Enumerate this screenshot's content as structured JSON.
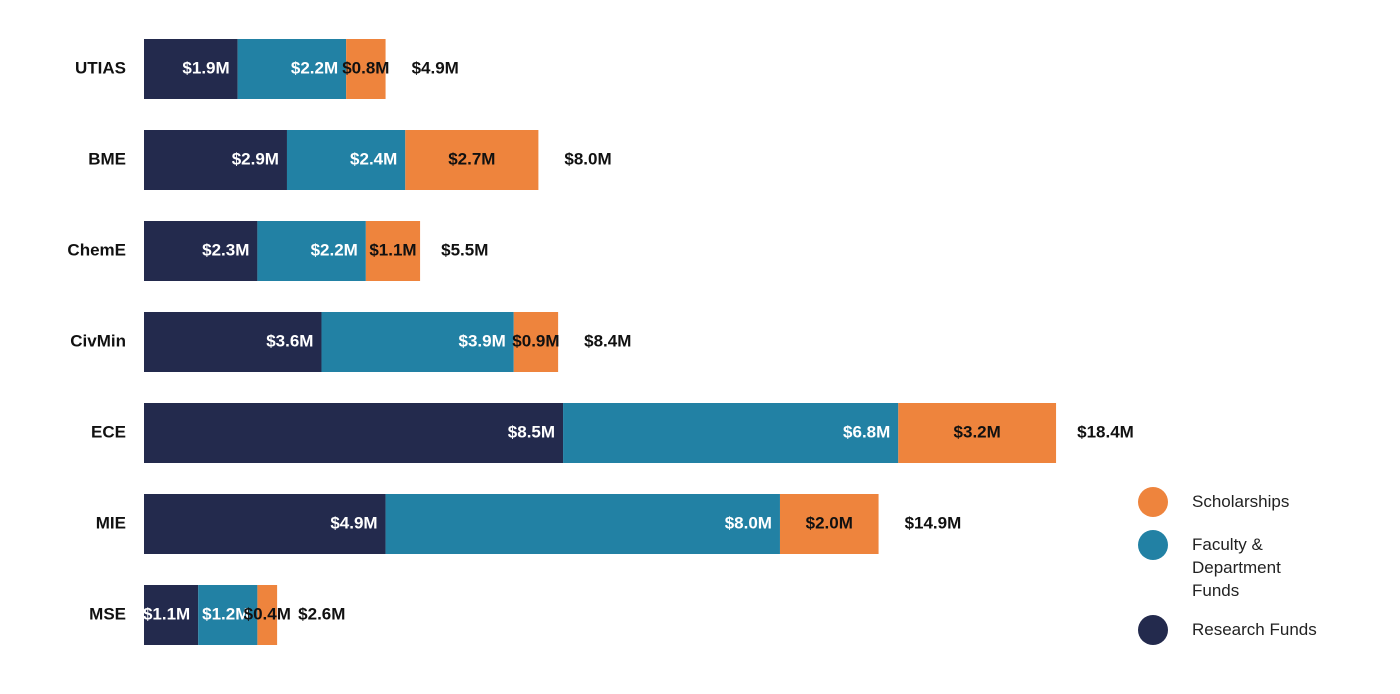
{
  "chart_data": {
    "type": "stacked_bar_horizontal",
    "categories": [
      "UTIAS",
      "BME",
      "ChemE",
      "CivMin",
      "ECE",
      "MIE",
      "MSE"
    ],
    "series": [
      {
        "name": "Research Funds",
        "color": "#232a4d",
        "label_color": "#ffffff",
        "values": [
          1.9,
          2.9,
          2.3,
          3.6,
          8.5,
          4.9,
          1.1
        ],
        "value_labels": [
          "$1.9M",
          "$2.9M",
          "$2.3M",
          "$3.6M",
          "$8.5M",
          "$4.9M",
          "$1.1M"
        ]
      },
      {
        "name": "Faculty & Department Funds",
        "color": "#2281a4",
        "label_color": "#ffffff",
        "values": [
          2.2,
          2.4,
          2.2,
          3.9,
          6.8,
          8.0,
          1.2
        ],
        "value_labels": [
          "$2.2M",
          "$2.4M",
          "$2.2M",
          "$3.9M",
          "$6.8M",
          "$8.0M",
          "$1.2M"
        ]
      },
      {
        "name": "Scholarships",
        "color": "#ee843d",
        "label_color": "#111111",
        "values": [
          0.8,
          2.7,
          1.1,
          0.9,
          3.2,
          2.0,
          0.4
        ],
        "value_labels": [
          "$0.8M",
          "$2.7M",
          "$1.1M",
          "$0.9M",
          "$3.2M",
          "$2.0M",
          "$0.4M"
        ]
      }
    ],
    "totals": {
      "values": [
        4.9,
        8.0,
        5.5,
        8.4,
        18.4,
        14.9,
        2.6
      ],
      "value_labels": [
        "$4.9M",
        "$8.0M",
        "$5.5M",
        "$8.4M",
        "$18.4M",
        "$14.9M",
        "$2.6M"
      ]
    }
  }
}
